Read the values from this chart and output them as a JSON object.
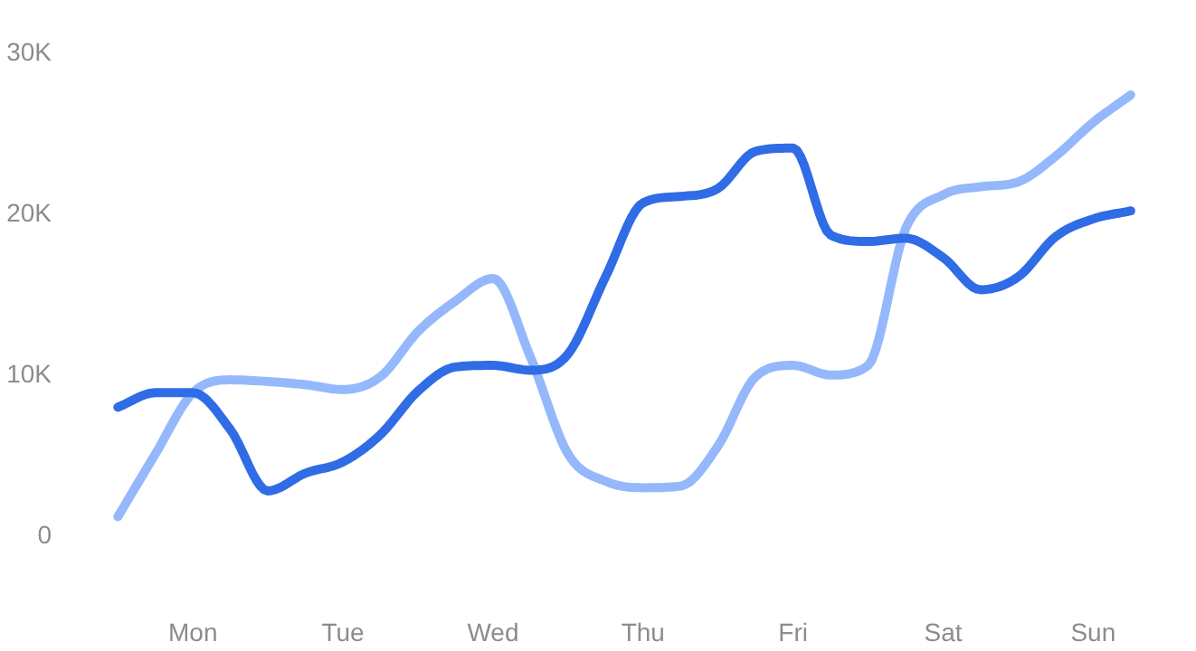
{
  "chart_data": {
    "type": "line",
    "ylim": [
      0,
      30
    ],
    "categories": [
      null,
      null,
      "Mon",
      null,
      null,
      null,
      "Tue",
      null,
      null,
      null,
      "Wed",
      null,
      null,
      null,
      "Thu",
      null,
      null,
      null,
      "Fri",
      null,
      null,
      null,
      "Sat",
      null,
      null,
      null,
      "Sun",
      null
    ],
    "yticks": [
      0,
      {
        "value": 10,
        "label": "10K"
      },
      {
        "value": 20,
        "label": "20K"
      },
      {
        "value": 30,
        "label": "30K"
      }
    ],
    "grid": false,
    "marker": "none",
    "line_style": "solid",
    "series": [
      {
        "color": "#94b8fb",
        "values": [
          1.1,
          5.0,
          8.8,
          9.6,
          9.5,
          9.3,
          9.0,
          9.8,
          12.6,
          14.5,
          15.9,
          11.0,
          5.0,
          3.3,
          2.9,
          3.0,
          5.5,
          9.8,
          10.5,
          9.9,
          10.5,
          19.0,
          21.1,
          21.6,
          21.9,
          23.5,
          25.6,
          27.3
        ]
      },
      {
        "color": "#2f6ce5",
        "values": [
          7.9,
          8.8,
          8.8,
          6.5,
          2.7,
          3.8,
          4.5,
          6.2,
          8.9,
          10.4,
          10.5,
          10.2,
          11.2,
          16.0,
          20.6,
          21.0,
          21.5,
          23.8,
          24.0,
          18.6,
          18.2,
          18.4,
          17.2,
          15.2,
          16.0,
          18.5,
          19.6,
          20.1
        ]
      }
    ]
  }
}
